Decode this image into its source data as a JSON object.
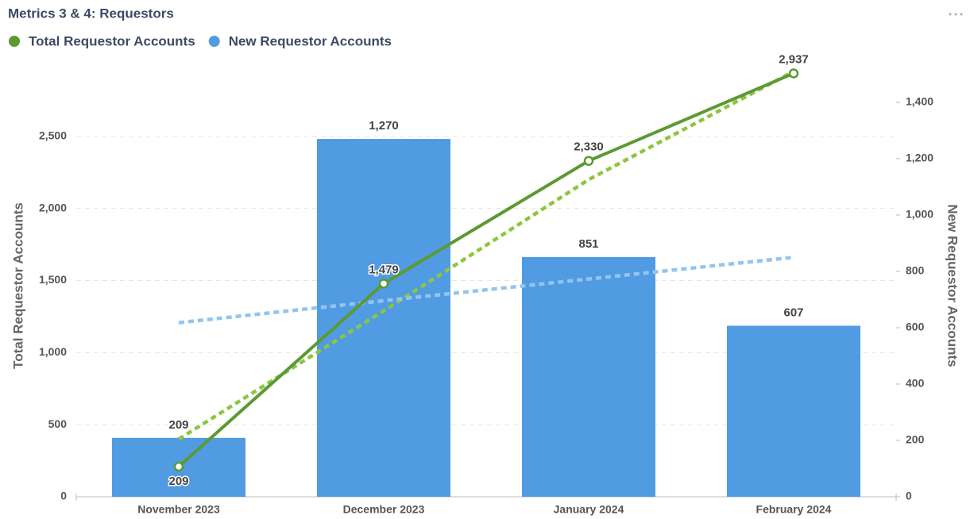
{
  "chart_data": {
    "type": "bar-line",
    "title": "Metrics 3 & 4: Requestors",
    "categories": [
      "November 2023",
      "December 2023",
      "January 2024",
      "February 2024"
    ],
    "series": [
      {
        "name": "Total Requestor Accounts",
        "color": "#5b9a32",
        "type": "line",
        "axis": "y",
        "values": [
          209,
          1479,
          2330,
          2937
        ],
        "value_labels": [
          "209",
          "1,479",
          "2,330",
          "2,937"
        ]
      },
      {
        "name": "New Requestor Accounts",
        "color": "#519be2",
        "type": "bar",
        "axis": "y2",
        "values": [
          209,
          1270,
          851,
          607
        ],
        "value_labels": [
          "209",
          "1,270",
          "851",
          "607"
        ]
      }
    ],
    "trendlines": [
      {
        "color": "#8cc63f",
        "axis": "y",
        "values": [
          400,
          1290,
          2200,
          2950
        ]
      },
      {
        "color": "#92c5ef",
        "axis": "y2",
        "values": [
          618,
          696,
          773,
          850
        ]
      }
    ],
    "ylabel": "Total Requestor Accounts",
    "y2label": "New Requestor Accounts",
    "ylim": [
      0,
      3000
    ],
    "yticks": [
      0,
      {
        "value": 500,
        "label": "500"
      },
      {
        "value": 1000,
        "label": "1,000"
      },
      {
        "value": 1500,
        "label": "1,500"
      },
      {
        "value": 2000,
        "label": "2,000"
      },
      {
        "value": 2500,
        "label": "2,500"
      }
    ],
    "y2lim": [
      0,
      1535
    ],
    "y2ticks": [
      0,
      200,
      400,
      600,
      800,
      {
        "value": 1000,
        "label": "1,000"
      },
      {
        "value": 1200,
        "label": "1,200"
      },
      {
        "value": 1400,
        "label": "1,400"
      }
    ],
    "grid": true
  }
}
